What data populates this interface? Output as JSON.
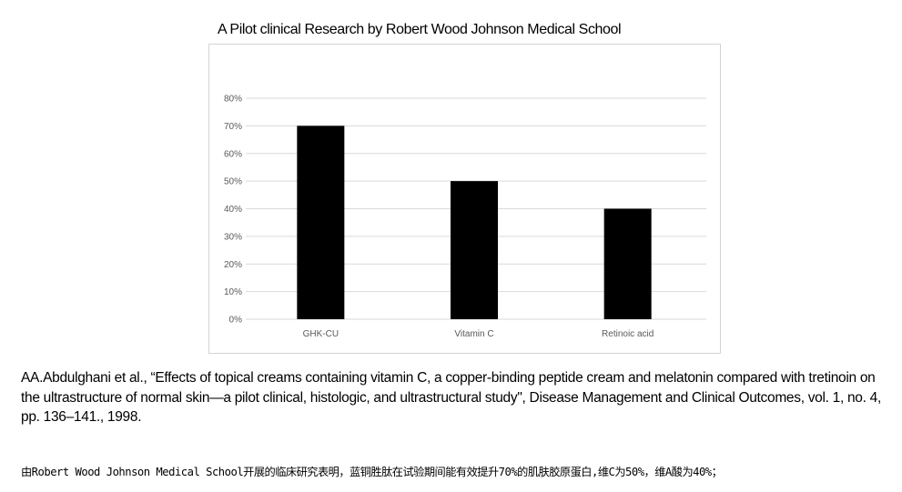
{
  "chart_data": {
    "type": "bar",
    "title": "A Pilot clinical Research by Robert Wood Johnson Medical School",
    "categories": [
      "GHK-CU",
      "Vitamin C",
      "Retinoic acid"
    ],
    "values": [
      70,
      50,
      40
    ],
    "ylim": [
      0,
      80
    ],
    "yticks": [
      "0%",
      "10%",
      "20%",
      "30%",
      "40%",
      "50%",
      "60%",
      "70%",
      "80%"
    ],
    "grid": true,
    "bar_color": "#000000",
    "grid_color": "#d9d9d9"
  },
  "citation": "AA.Abdulghani et al., “Effects of topical creams containing vitamin C, a copper-binding peptide cream and melatonin compared with tretinoin on the ultrastructure of normal skin—a pilot clinical, histologic, and ultrastructural study\", Disease Management and Clinical Outcomes, vol. 1, no. 4, pp. 136–141., 1998.",
  "note": "由Robert Wood Johnson Medical School开展的临床研究表明，蓝铜胜肽在试验期间能有效提升70%的肌肤胶原蛋白,维C为50%，维A酸为40%；"
}
